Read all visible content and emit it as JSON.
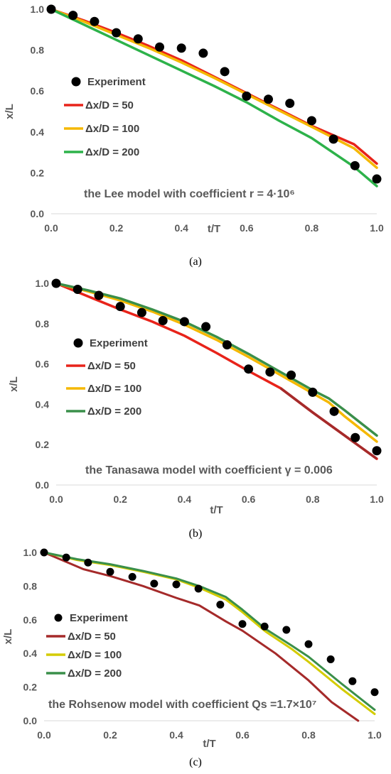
{
  "chart_data": [
    {
      "type": "line",
      "caption": "(a)",
      "xlabel": "t/T",
      "ylabel": "x/L",
      "xlim": [
        0,
        1
      ],
      "ylim": [
        0,
        1
      ],
      "xticks": [
        "0.0",
        "0.2",
        "0.4",
        "0.6",
        "0.8",
        "1.0"
      ],
      "yticks": [
        "0.0",
        "0.2",
        "0.4",
        "0.6",
        "0.8",
        "1.0"
      ],
      "annotation": "the Lee model with coefficient r = 4·10⁶",
      "legend_position": "left-middle",
      "scatter": {
        "name": "Experiment",
        "color": "#000000",
        "x": [
          0.0,
          0.067,
          0.133,
          0.2,
          0.267,
          0.333,
          0.4,
          0.467,
          0.533,
          0.6,
          0.667,
          0.733,
          0.8,
          0.867,
          0.933,
          1.0
        ],
        "y": [
          1.0,
          0.97,
          0.94,
          0.885,
          0.855,
          0.815,
          0.81,
          0.785,
          0.695,
          0.575,
          0.56,
          0.54,
          0.455,
          0.365,
          0.235,
          0.17
        ]
      },
      "series": [
        {
          "name": "Δx/D = 50",
          "color": "#e8231a",
          "x": [
            0,
            0.1,
            0.2,
            0.3,
            0.4,
            0.5,
            0.6,
            0.7,
            0.8,
            0.93,
            1.0
          ],
          "y": [
            1.0,
            0.945,
            0.885,
            0.82,
            0.75,
            0.67,
            0.59,
            0.51,
            0.43,
            0.34,
            0.245
          ]
        },
        {
          "name": "Δx/D = 100",
          "color": "#f5b800",
          "x": [
            0,
            0.1,
            0.2,
            0.3,
            0.4,
            0.5,
            0.6,
            0.7,
            0.8,
            0.93,
            1.0
          ],
          "y": [
            1.0,
            0.94,
            0.875,
            0.81,
            0.74,
            0.665,
            0.585,
            0.505,
            0.425,
            0.32,
            0.225
          ]
        },
        {
          "name": "Δx/D = 200",
          "color": "#2db24a",
          "x": [
            0,
            0.1,
            0.2,
            0.3,
            0.4,
            0.5,
            0.6,
            0.7,
            0.8,
            0.93,
            1.0
          ],
          "y": [
            1.0,
            0.925,
            0.85,
            0.775,
            0.7,
            0.625,
            0.545,
            0.455,
            0.37,
            0.23,
            0.135
          ]
        }
      ]
    },
    {
      "type": "line",
      "caption": "(b)",
      "xlabel": "t/T",
      "ylabel": "x/L",
      "xlim": [
        0,
        1
      ],
      "ylim": [
        0,
        1
      ],
      "xticks": [
        "0.0",
        "0.2",
        "0.4",
        "0.6",
        "0.8",
        "1.0"
      ],
      "yticks": [
        "0.0",
        "0.2",
        "0.4",
        "0.6",
        "0.8",
        "1.0"
      ],
      "annotation": "the Tanasawa model with coefficient γ = 0.006",
      "legend_position": "left-middle",
      "scatter": {
        "name": "Experiment",
        "color": "#000000",
        "x": [
          0.0,
          0.067,
          0.133,
          0.2,
          0.267,
          0.333,
          0.4,
          0.467,
          0.533,
          0.6,
          0.667,
          0.733,
          0.8,
          0.867,
          0.933,
          1.0
        ],
        "y": [
          1.0,
          0.97,
          0.94,
          0.885,
          0.855,
          0.815,
          0.81,
          0.785,
          0.695,
          0.575,
          0.56,
          0.545,
          0.46,
          0.365,
          0.235,
          0.17
        ]
      },
      "series": [
        {
          "name": "Δx/D = 50",
          "color": "#e8231a",
          "tail_color": "#a52a2a",
          "x": [
            0,
            0.1,
            0.2,
            0.3,
            0.4,
            0.5,
            0.6,
            0.7,
            0.8,
            0.9,
            1.0
          ],
          "y": [
            1.0,
            0.935,
            0.87,
            0.81,
            0.74,
            0.655,
            0.565,
            0.48,
            0.36,
            0.245,
            0.13
          ]
        },
        {
          "name": "Δx/D = 100",
          "color": "#f5b800",
          "x": [
            0,
            0.1,
            0.2,
            0.3,
            0.4,
            0.5,
            0.6,
            0.7,
            0.8,
            0.85,
            0.9,
            1.0
          ],
          "y": [
            1.0,
            0.96,
            0.915,
            0.86,
            0.795,
            0.72,
            0.635,
            0.545,
            0.455,
            0.41,
            0.34,
            0.215
          ]
        },
        {
          "name": "Δx/D = 200",
          "color": "#3a8f4a",
          "x": [
            0,
            0.1,
            0.2,
            0.3,
            0.4,
            0.5,
            0.6,
            0.7,
            0.8,
            0.85,
            0.9,
            1.0
          ],
          "y": [
            1.0,
            0.965,
            0.925,
            0.87,
            0.81,
            0.735,
            0.65,
            0.56,
            0.47,
            0.43,
            0.37,
            0.245
          ]
        }
      ]
    },
    {
      "type": "line",
      "caption": "(c)",
      "xlabel": "t/T",
      "ylabel": "x/L",
      "xlim": [
        0,
        1
      ],
      "ylim": [
        0,
        1
      ],
      "xticks": [
        "0.0",
        "0.2",
        "0.4",
        "0.6",
        "0.8",
        "1.0"
      ],
      "yticks": [
        "0.0",
        "0.2",
        "0.4",
        "0.6",
        "0.8",
        "1.0"
      ],
      "annotation": "the Rohsenow model with coefficient Qs =1.7×10⁷",
      "legend_position": "left-bottom",
      "scatter": {
        "name": "Experiment",
        "color": "#000000",
        "x": [
          0.0,
          0.067,
          0.133,
          0.2,
          0.267,
          0.333,
          0.4,
          0.467,
          0.533,
          0.6,
          0.667,
          0.733,
          0.8,
          0.867,
          0.933,
          1.0
        ],
        "y": [
          1.0,
          0.97,
          0.94,
          0.885,
          0.855,
          0.815,
          0.81,
          0.785,
          0.69,
          0.575,
          0.56,
          0.54,
          0.455,
          0.365,
          0.235,
          0.17
        ]
      },
      "series": [
        {
          "name": "Δx/D = 50",
          "color": "#a52a2a",
          "x": [
            0,
            0.12,
            0.2,
            0.3,
            0.4,
            0.47,
            0.55,
            0.6,
            0.7,
            0.8,
            0.87,
            0.95
          ],
          "y": [
            1.0,
            0.9,
            0.86,
            0.8,
            0.73,
            0.685,
            0.59,
            0.535,
            0.4,
            0.24,
            0.11,
            0.0
          ]
        },
        {
          "name": "Δx/D = 100",
          "color": "#d4cc00",
          "x": [
            0,
            0.1,
            0.2,
            0.3,
            0.4,
            0.47,
            0.55,
            0.6,
            0.67,
            0.75,
            0.8,
            0.9,
            1.0
          ],
          "y": [
            1.0,
            0.955,
            0.925,
            0.885,
            0.84,
            0.79,
            0.72,
            0.645,
            0.53,
            0.425,
            0.35,
            0.19,
            0.04
          ]
        },
        {
          "name": "Δx/D = 200",
          "color": "#3a8f4a",
          "x": [
            0,
            0.1,
            0.2,
            0.3,
            0.4,
            0.47,
            0.55,
            0.6,
            0.67,
            0.75,
            0.8,
            0.9,
            1.0
          ],
          "y": [
            1.0,
            0.96,
            0.93,
            0.89,
            0.845,
            0.8,
            0.735,
            0.66,
            0.545,
            0.445,
            0.38,
            0.22,
            0.065
          ]
        }
      ]
    }
  ]
}
